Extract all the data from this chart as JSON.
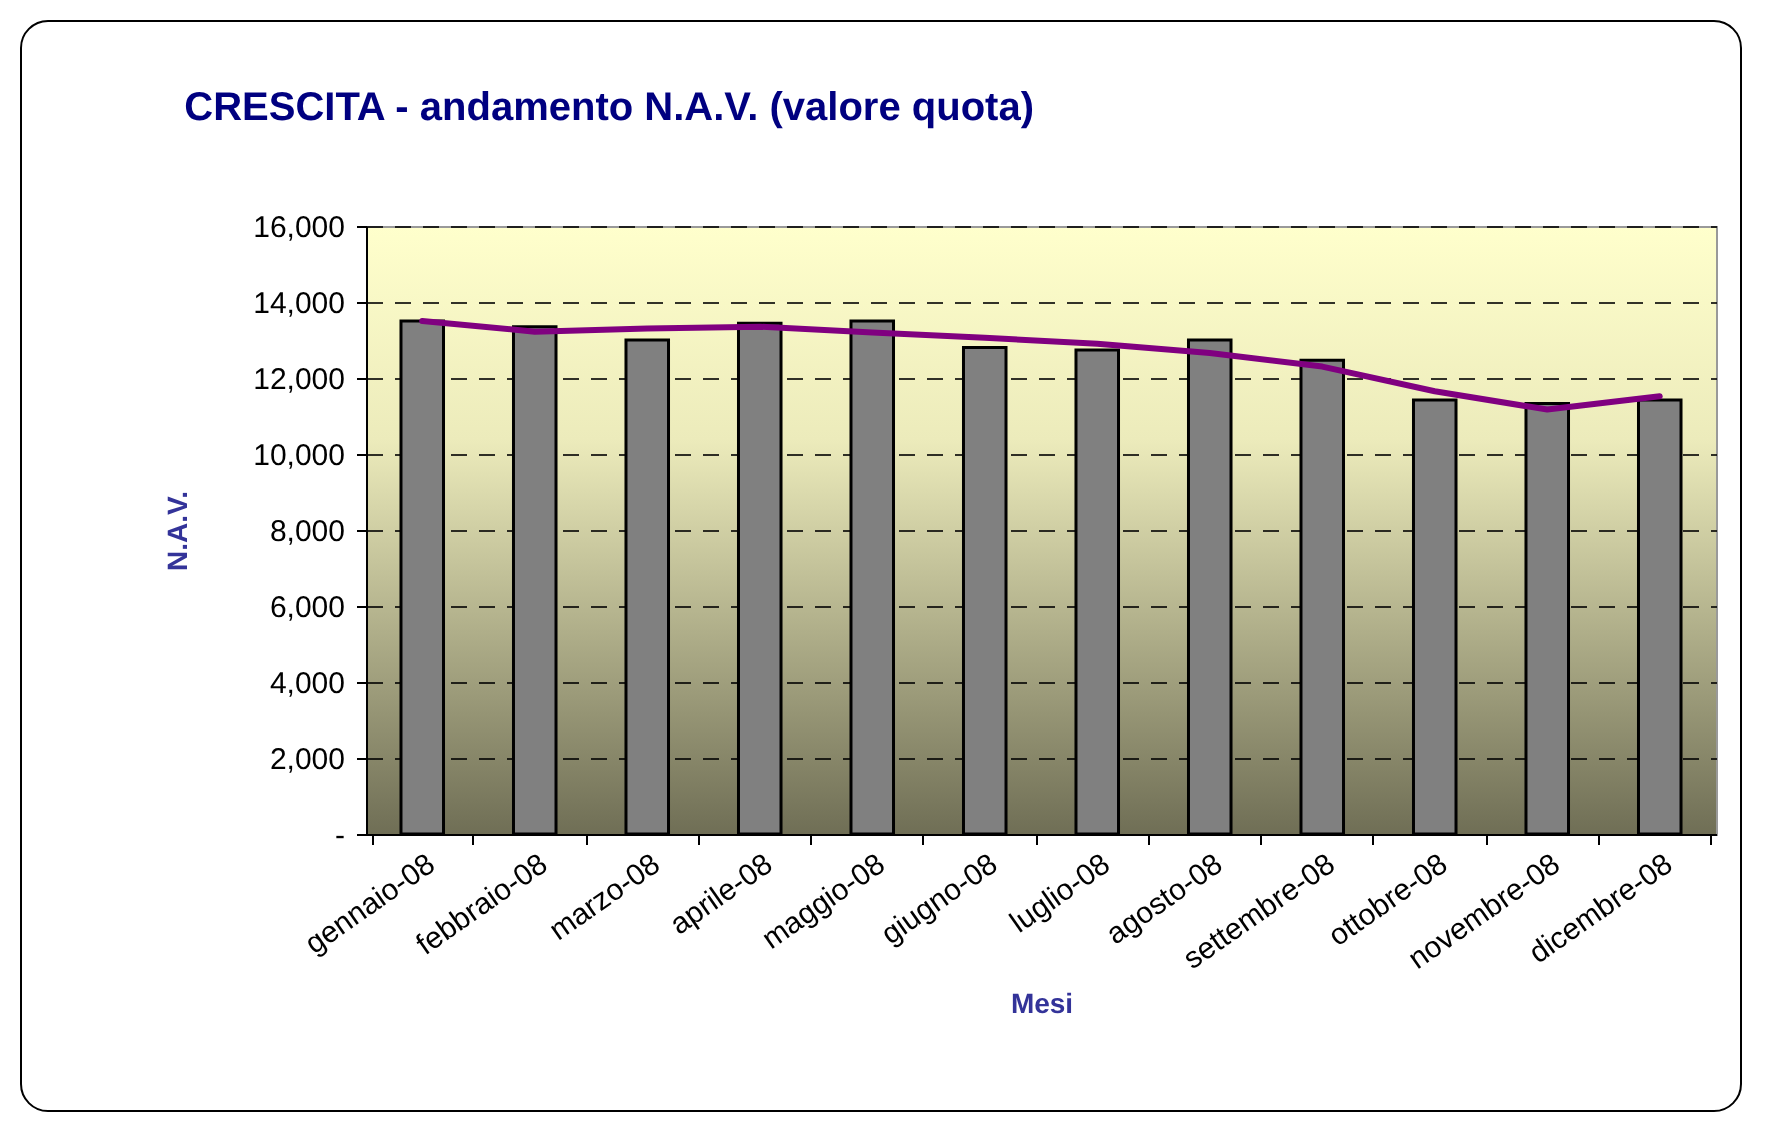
{
  "chart_data": {
    "type": "bar",
    "title": "CRESCITA - andamento N.A.V. (valore quota)",
    "xlabel": "Mesi",
    "ylabel": "N.A.V.",
    "categories": [
      "gennaio-08",
      "febbraio-08",
      "marzo-08",
      "aprile-08",
      "maggio-08",
      "giugno-08",
      "luglio-08",
      "agosto-08",
      "settembre-08",
      "ottobre-08",
      "novembre-08",
      "dicembre-08"
    ],
    "series": [
      {
        "color": "#808080",
        "values": [
          13500,
          13350,
          13000,
          13440,
          13500,
          12800,
          12740,
          13000,
          12470,
          11420,
          11330,
          11420
        ]
      },
      {
        "type": "line",
        "color": "#800080",
        "values": [
          13500,
          13220,
          13300,
          13350,
          13200,
          13060,
          12900,
          12660,
          12300,
          11650,
          11170,
          11520
        ]
      }
    ],
    "ylim": [
      0,
      16000
    ],
    "yticks": [
      {
        "value": 0,
        "label": "-"
      },
      {
        "value": 2000,
        "label": "2,000"
      },
      {
        "value": 4000,
        "label": "4,000"
      },
      {
        "value": 6000,
        "label": "6,000"
      },
      {
        "value": 8000,
        "label": "8,000"
      },
      {
        "value": 10000,
        "label": "10,000"
      },
      {
        "value": 12000,
        "label": "12,000"
      },
      {
        "value": 14000,
        "label": "14,000"
      },
      {
        "value": 16000,
        "label": "16,000"
      }
    ],
    "grid": "y",
    "line_style": "solid"
  }
}
